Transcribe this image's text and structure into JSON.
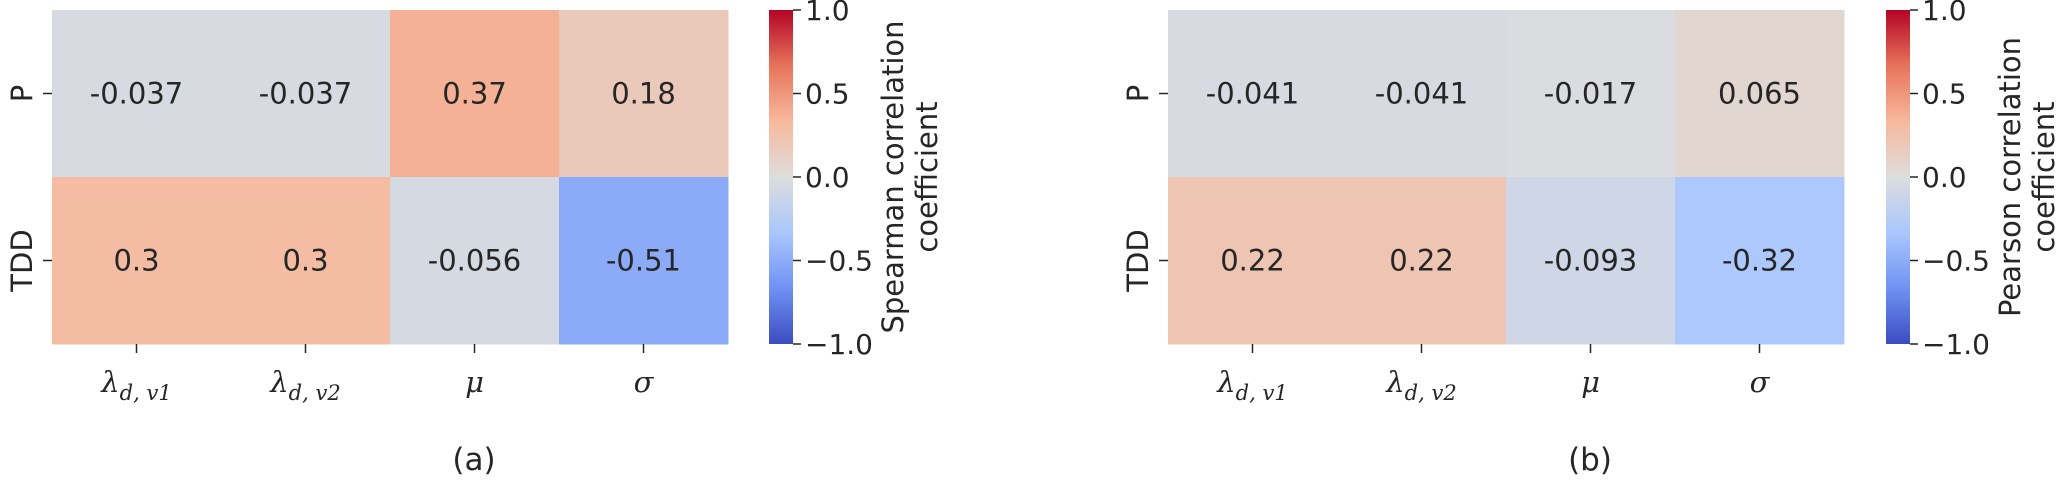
{
  "chart_data": [
    {
      "type": "heatmap",
      "caption": "(a)",
      "rows": [
        "P",
        "TDD"
      ],
      "columns": [
        {
          "base": "λ",
          "sub": "d, v1"
        },
        {
          "base": "λ",
          "sub": "d, v2"
        },
        {
          "base": "μ",
          "sub": ""
        },
        {
          "base": "σ",
          "sub": ""
        }
      ],
      "values": [
        [
          -0.037,
          -0.037,
          0.37,
          0.18
        ],
        [
          0.3,
          0.3,
          -0.056,
          -0.51
        ]
      ],
      "value_labels": [
        [
          "-0.037",
          "-0.037",
          "0.37",
          "0.18"
        ],
        [
          "0.3",
          "0.3",
          "-0.056",
          "-0.51"
        ]
      ],
      "colorbar": {
        "label_lines": [
          "Spearman correlation",
          "coefficient"
        ],
        "ticks": [
          "1.0",
          "0.5",
          "0.0",
          "−0.5",
          "−1.0"
        ],
        "tick_values": [
          1.0,
          0.5,
          0.0,
          -0.5,
          -1.0
        ],
        "range": [
          -1.0,
          1.0
        ],
        "colormap": "coolwarm"
      }
    },
    {
      "type": "heatmap",
      "caption": "(b)",
      "rows": [
        "P",
        "TDD"
      ],
      "columns": [
        {
          "base": "λ",
          "sub": "d, v1"
        },
        {
          "base": "λ",
          "sub": "d, v2"
        },
        {
          "base": "μ",
          "sub": ""
        },
        {
          "base": "σ",
          "sub": ""
        }
      ],
      "values": [
        [
          -0.041,
          -0.041,
          -0.017,
          0.065
        ],
        [
          0.22,
          0.22,
          -0.093,
          -0.32
        ]
      ],
      "value_labels": [
        [
          "-0.041",
          "-0.041",
          "-0.017",
          "0.065"
        ],
        [
          "0.22",
          "0.22",
          "-0.093",
          "-0.32"
        ]
      ],
      "colorbar": {
        "label_lines": [
          "Pearson correlation",
          "coefficient"
        ],
        "ticks": [
          "1.0",
          "0.5",
          "0.0",
          "−0.5",
          "−1.0"
        ],
        "tick_values": [
          1.0,
          0.5,
          0.0,
          -0.5,
          -1.0
        ],
        "range": [
          -1.0,
          1.0
        ],
        "colormap": "coolwarm"
      }
    }
  ],
  "colors": {
    "coolwarm_stops": [
      "#3b4cc0",
      "#6f92f3",
      "#aac7fd",
      "#dddddd",
      "#f7b89c",
      "#e7745b",
      "#b40426"
    ],
    "text": "#262626"
  }
}
